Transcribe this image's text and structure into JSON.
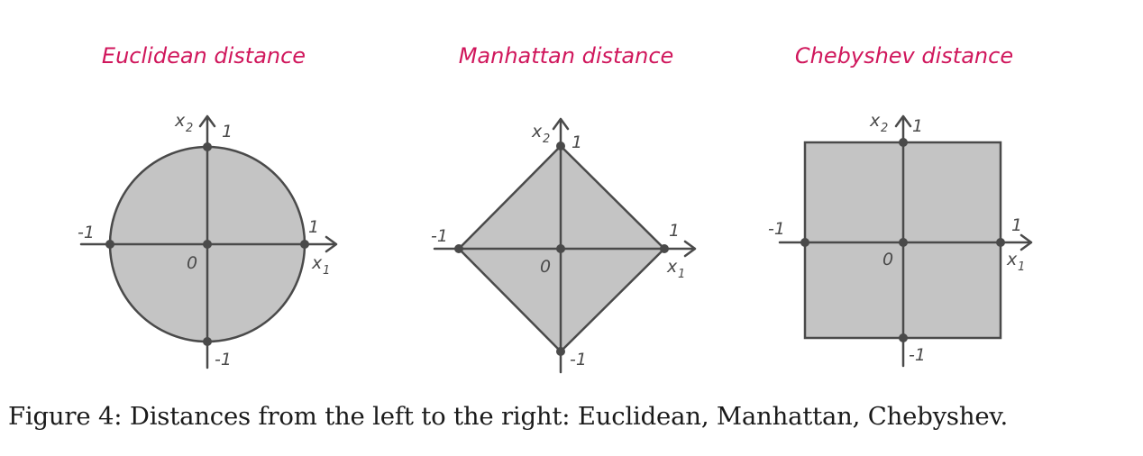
{
  "diagrams": [
    {
      "title": "Euclidean distance",
      "shape": "circle",
      "labels": {
        "pos_one": "1",
        "neg_one": "-1",
        "origin": "0",
        "x_axis": "x",
        "x_axis_sub": "1",
        "y_axis": "x",
        "y_axis_sub": "2"
      }
    },
    {
      "title": "Manhattan distance",
      "shape": "diamond",
      "labels": {
        "pos_one": "1",
        "neg_one": "-1",
        "origin": "0",
        "x_axis": "x",
        "x_axis_sub": "1",
        "y_axis": "x",
        "y_axis_sub": "2"
      }
    },
    {
      "title": "Chebyshev distance",
      "shape": "square",
      "labels": {
        "pos_one": "1",
        "neg_one": "-1",
        "origin": "0",
        "x_axis": "x",
        "x_axis_sub": "1",
        "y_axis": "x",
        "y_axis_sub": "2"
      }
    }
  ],
  "caption": "Figure 4: Distances from the left to the right: Euclidean, Manhattan, Chebyshev.",
  "colors": {
    "title": "#d0175c",
    "fill": "#c4c4c4",
    "stroke": "#4a4a4a"
  }
}
